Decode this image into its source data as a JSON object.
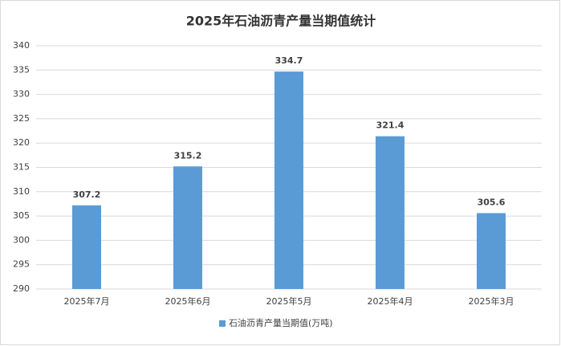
{
  "chart_data": {
    "type": "bar",
    "title": "2025年石油沥青产量当期值统计",
    "categories": [
      "2025年7月",
      "2025年6月",
      "2025年5月",
      "2025年4月",
      "2025年3月"
    ],
    "series": [
      {
        "name": "石油沥青产量当期值(万吨)",
        "color": "#5b9bd5",
        "values": [
          307.2,
          315.2,
          334.7,
          321.4,
          305.6
        ]
      }
    ],
    "ylim": [
      290,
      340
    ],
    "yticks": [
      290,
      295,
      300,
      305,
      310,
      315,
      320,
      325,
      330,
      335,
      340
    ],
    "grid": true,
    "legend": "bottom"
  }
}
